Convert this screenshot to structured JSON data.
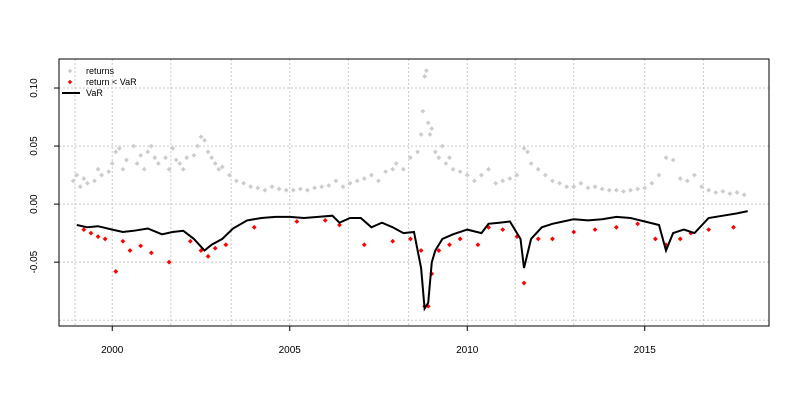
{
  "chart_data": {
    "type": "scatter",
    "title": "",
    "xlabel": "",
    "ylabel": "",
    "xlim": [
      1998.5,
      2018.5
    ],
    "ylim": [
      -0.105,
      0.125
    ],
    "x_ticks": [
      2000,
      2005,
      2010,
      2015
    ],
    "x_tick_labels": [
      "2000",
      "2005",
      "2010",
      "2015"
    ],
    "y_ticks": [
      -0.05,
      0.0,
      0.05,
      0.1
    ],
    "y_tick_labels": [
      "-0.05",
      "0.00",
      "0.05",
      "0.10"
    ],
    "grid": true,
    "legend": {
      "position": "top-left",
      "entries": [
        {
          "label": "returns",
          "color": "#cccccc",
          "marker": "diamond"
        },
        {
          "label": "return < VaR",
          "color": "#ff0000",
          "marker": "diamond"
        },
        {
          "label": "VaR",
          "color": "#000000",
          "marker": "line"
        }
      ]
    },
    "series": [
      {
        "name": "VaR",
        "type": "line",
        "color": "#000000",
        "x": [
          1999.0,
          1999.3,
          1999.6,
          2000.0,
          2000.3,
          2000.6,
          2001.0,
          2001.4,
          2001.7,
          2002.0,
          2002.3,
          2002.6,
          2002.8,
          2003.1,
          2003.4,
          2003.8,
          2004.2,
          2004.6,
          2005.0,
          2005.4,
          2005.8,
          2006.2,
          2006.4,
          2006.7,
          2007.0,
          2007.3,
          2007.6,
          2007.9,
          2008.2,
          2008.5,
          2008.7,
          2008.8,
          2008.9,
          2009.0,
          2009.1,
          2009.3,
          2009.6,
          2010.0,
          2010.4,
          2010.6,
          2010.9,
          2011.2,
          2011.5,
          2011.6,
          2011.8,
          2012.1,
          2012.4,
          2012.7,
          2013.0,
          2013.4,
          2013.8,
          2014.2,
          2014.6,
          2015.0,
          2015.4,
          2015.6,
          2015.8,
          2016.1,
          2016.4,
          2016.8,
          2017.2,
          2017.6,
          2017.9
        ],
        "values": [
          -0.018,
          -0.02,
          -0.019,
          -0.022,
          -0.024,
          -0.023,
          -0.021,
          -0.026,
          -0.024,
          -0.023,
          -0.03,
          -0.04,
          -0.035,
          -0.03,
          -0.021,
          -0.014,
          -0.012,
          -0.011,
          -0.011,
          -0.012,
          -0.011,
          -0.01,
          -0.016,
          -0.012,
          -0.012,
          -0.02,
          -0.016,
          -0.02,
          -0.025,
          -0.024,
          -0.055,
          -0.09,
          -0.085,
          -0.05,
          -0.04,
          -0.03,
          -0.026,
          -0.022,
          -0.025,
          -0.017,
          -0.016,
          -0.015,
          -0.03,
          -0.055,
          -0.03,
          -0.02,
          -0.017,
          -0.015,
          -0.013,
          -0.014,
          -0.013,
          -0.011,
          -0.012,
          -0.015,
          -0.018,
          -0.04,
          -0.025,
          -0.022,
          -0.025,
          -0.012,
          -0.01,
          -0.008,
          -0.006
        ]
      },
      {
        "name": "return < VaR",
        "type": "scatter",
        "color": "#ff0000",
        "x": [
          1999.2,
          1999.4,
          1999.6,
          1999.8,
          2000.1,
          2000.3,
          2000.5,
          2000.8,
          2001.1,
          2001.6,
          2002.2,
          2002.5,
          2002.7,
          2002.9,
          2003.2,
          2004.0,
          2005.2,
          2006.0,
          2006.4,
          2007.1,
          2007.9,
          2008.4,
          2008.7,
          2008.8,
          2008.9,
          2009.0,
          2009.2,
          2009.5,
          2009.8,
          2010.3,
          2010.6,
          2011.0,
          2011.4,
          2011.6,
          2012.0,
          2012.4,
          2013.0,
          2013.6,
          2014.2,
          2014.8,
          2015.3,
          2015.6,
          2016.0,
          2016.3,
          2016.8,
          2017.5
        ],
        "values": [
          -0.022,
          -0.025,
          -0.028,
          -0.03,
          -0.058,
          -0.032,
          -0.04,
          -0.036,
          -0.042,
          -0.05,
          -0.032,
          -0.04,
          -0.045,
          -0.038,
          -0.035,
          -0.02,
          -0.015,
          -0.014,
          -0.018,
          -0.035,
          -0.032,
          -0.03,
          -0.04,
          -0.088,
          -0.088,
          -0.06,
          -0.04,
          -0.035,
          -0.03,
          -0.035,
          -0.02,
          -0.022,
          -0.028,
          -0.068,
          -0.03,
          -0.03,
          -0.024,
          -0.022,
          -0.02,
          -0.017,
          -0.03,
          -0.035,
          -0.03,
          -0.025,
          -0.022,
          -0.02
        ]
      },
      {
        "name": "returns",
        "type": "scatter",
        "color": "#cccccc",
        "x": [
          1998.9,
          1999.0,
          1999.1,
          1999.2,
          1999.3,
          1999.5,
          1999.6,
          1999.7,
          1999.9,
          2000.0,
          2000.1,
          2000.2,
          2000.3,
          2000.4,
          2000.6,
          2000.7,
          2000.8,
          2000.9,
          2001.0,
          2001.1,
          2001.2,
          2001.3,
          2001.5,
          2001.6,
          2001.7,
          2001.8,
          2001.9,
          2002.0,
          2002.1,
          2002.3,
          2002.4,
          2002.5,
          2002.6,
          2002.7,
          2002.8,
          2002.9,
          2003.0,
          2003.1,
          2003.3,
          2003.5,
          2003.7,
          2003.9,
          2004.1,
          2004.3,
          2004.5,
          2004.7,
          2004.9,
          2005.1,
          2005.3,
          2005.5,
          2005.7,
          2005.9,
          2006.1,
          2006.3,
          2006.5,
          2006.7,
          2006.9,
          2007.1,
          2007.3,
          2007.5,
          2007.7,
          2007.9,
          2008.0,
          2008.2,
          2008.4,
          2008.6,
          2008.7,
          2008.75,
          2008.8,
          2008.85,
          2008.9,
          2008.95,
          2009.0,
          2009.1,
          2009.2,
          2009.3,
          2009.4,
          2009.5,
          2009.6,
          2009.8,
          2010.0,
          2010.2,
          2010.4,
          2010.6,
          2010.8,
          2011.0,
          2011.2,
          2011.4,
          2011.6,
          2011.7,
          2011.8,
          2012.0,
          2012.2,
          2012.4,
          2012.6,
          2012.8,
          2013.0,
          2013.2,
          2013.4,
          2013.6,
          2013.8,
          2014.0,
          2014.2,
          2014.4,
          2014.6,
          2014.8,
          2015.0,
          2015.2,
          2015.4,
          2015.6,
          2015.8,
          2016.0,
          2016.2,
          2016.4,
          2016.6,
          2016.8,
          2017.0,
          2017.2,
          2017.4,
          2017.6,
          2017.8
        ],
        "values": [
          0.02,
          0.025,
          0.015,
          0.022,
          0.018,
          0.02,
          0.03,
          0.025,
          0.028,
          0.035,
          0.045,
          0.048,
          0.03,
          0.038,
          0.05,
          0.035,
          0.042,
          0.03,
          0.045,
          0.05,
          0.04,
          0.035,
          0.04,
          0.03,
          0.048,
          0.038,
          0.035,
          0.03,
          0.04,
          0.042,
          0.05,
          0.058,
          0.055,
          0.045,
          0.04,
          0.035,
          0.03,
          0.032,
          0.025,
          0.02,
          0.018,
          0.015,
          0.014,
          0.012,
          0.015,
          0.013,
          0.012,
          0.012,
          0.013,
          0.012,
          0.014,
          0.015,
          0.016,
          0.02,
          0.015,
          0.018,
          0.02,
          0.022,
          0.025,
          0.02,
          0.028,
          0.03,
          0.035,
          0.03,
          0.04,
          0.045,
          0.06,
          0.08,
          0.11,
          0.115,
          0.07,
          0.06,
          0.065,
          0.045,
          0.04,
          0.05,
          0.035,
          0.04,
          0.03,
          0.028,
          0.025,
          0.02,
          0.025,
          0.03,
          0.018,
          0.02,
          0.022,
          0.025,
          0.048,
          0.045,
          0.035,
          0.03,
          0.025,
          0.02,
          0.018,
          0.015,
          0.015,
          0.018,
          0.014,
          0.015,
          0.013,
          0.012,
          0.012,
          0.011,
          0.012,
          0.013,
          0.014,
          0.018,
          0.025,
          0.04,
          0.038,
          0.022,
          0.02,
          0.025,
          0.015,
          0.012,
          0.01,
          0.011,
          0.009,
          0.01,
          0.008
        ]
      }
    ]
  }
}
